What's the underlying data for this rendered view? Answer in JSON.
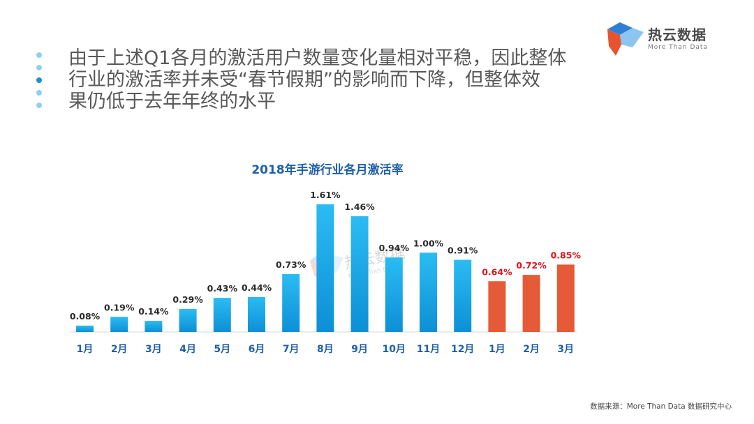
{
  "logo": {
    "name": "热云数据",
    "tagline": "More Than Data",
    "colors": {
      "blue": "#2f7fd6",
      "lightblue": "#8cc6ef",
      "red": "#e5542f"
    }
  },
  "heading": {
    "lines": [
      "由于上述Q1各月的激活用户数量变化量相对平稳，因此整体",
      "行业的激活率并未受“春节假期”的影响而下降，但整体效",
      "果仍低于去年年终的水平"
    ],
    "bullet_colors": [
      "#8fd0ef",
      "#8fd0ef",
      "#1f8fd3",
      "#8fd0ef",
      "#8fd0ef"
    ]
  },
  "chart_data": {
    "type": "bar",
    "title": "2018年手游行业各月激活率",
    "categories": [
      "1月",
      "2月",
      "3月",
      "4月",
      "5月",
      "6月",
      "7月",
      "8月",
      "9月",
      "10月",
      "11月",
      "12月",
      "1月",
      "2月",
      "3月"
    ],
    "values": [
      0.08,
      0.19,
      0.14,
      0.29,
      0.43,
      0.44,
      0.73,
      1.61,
      1.46,
      0.94,
      1.0,
      0.91,
      0.64,
      0.72,
      0.85
    ],
    "labels": [
      "0.08%",
      "0.19%",
      "0.14%",
      "0.29%",
      "0.43%",
      "0.44%",
      "0.73%",
      "1.61%",
      "1.46%",
      "0.94%",
      "1.00%",
      "0.91%",
      "0.64%",
      "0.72%",
      "0.85%"
    ],
    "highlight": [
      false,
      false,
      false,
      false,
      false,
      false,
      false,
      false,
      false,
      false,
      false,
      false,
      true,
      true,
      true
    ],
    "xlabel": "",
    "ylabel": "",
    "ylim": [
      0,
      1.61
    ],
    "grid": false,
    "colors": {
      "title": "#1f5fa8",
      "axis_label": "#1f5fa8",
      "label_normal": "#2a2a2a",
      "label_highlight": "#e0141e",
      "bar_top": "#2bbcf3",
      "bar_bottom": "#0d8fd6",
      "bar_highlight": "#e55b37"
    }
  },
  "watermark": {
    "name": "热云数据",
    "tagline": "More Than Data"
  },
  "source": "数据来源：More Than Data 数据研究中心"
}
